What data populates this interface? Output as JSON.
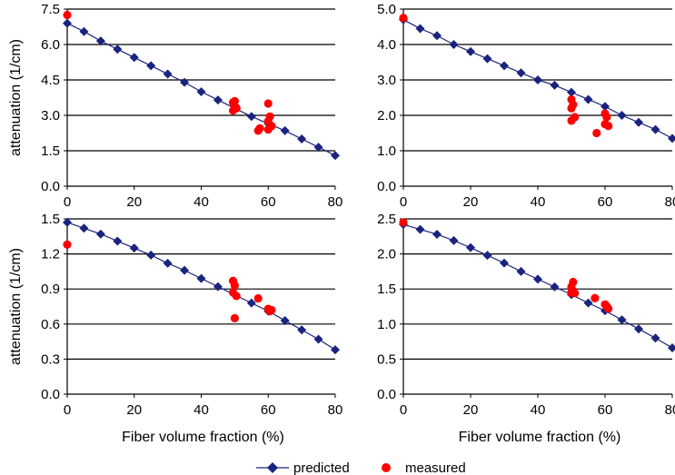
{
  "chart_data": [
    {
      "type": "line",
      "xlabel": "",
      "ylabel": "attenuation (1/cm)",
      "xlim": [
        0,
        80
      ],
      "ylim": [
        0,
        7.5
      ],
      "xticks": [
        "0",
        "20",
        "40",
        "60",
        "80"
      ],
      "yticks": [
        "0.0",
        "1.5",
        "3.0",
        "4.5",
        "6.0",
        "7.5"
      ],
      "grid": "horizontal",
      "series": [
        {
          "name": "predicted",
          "marker": "diamond",
          "color": "#1a237e",
          "x": [
            0,
            5,
            10,
            15,
            20,
            25,
            30,
            35,
            40,
            45,
            50,
            55,
            60,
            65,
            70,
            75,
            80
          ],
          "y": [
            6.9,
            6.55,
            6.15,
            5.8,
            5.45,
            5.1,
            4.75,
            4.4,
            4.0,
            3.65,
            3.3,
            2.95,
            2.65,
            2.35,
            2.0,
            1.65,
            1.3
          ]
        },
        {
          "name": "measured",
          "marker": "circle",
          "color": "#ff0000",
          "x": [
            0,
            49.5,
            50,
            50.5,
            49.5,
            50,
            57,
            57.5,
            60,
            60.5,
            60,
            61,
            60
          ],
          "y": [
            7.25,
            3.55,
            3.4,
            3.3,
            3.2,
            3.6,
            2.35,
            2.45,
            3.5,
            2.95,
            2.75,
            2.55,
            2.4
          ]
        }
      ]
    },
    {
      "type": "line",
      "xlabel": "",
      "ylabel": "",
      "xlim": [
        0,
        80
      ],
      "ylim": [
        0,
        5
      ],
      "xticks": [
        "0",
        "20",
        "40",
        "60",
        "80"
      ],
      "yticks": [
        "0.0",
        "1.0",
        "2.0",
        "3.0",
        "4.0",
        "5.0"
      ],
      "grid": "horizontal",
      "series": [
        {
          "name": "predicted",
          "marker": "diamond",
          "color": "#1a237e",
          "x": [
            0,
            5,
            10,
            15,
            20,
            25,
            30,
            35,
            40,
            45,
            50,
            55,
            60,
            65,
            70,
            75,
            80
          ],
          "y": [
            4.7,
            4.45,
            4.25,
            4.0,
            3.8,
            3.6,
            3.4,
            3.2,
            3.0,
            2.85,
            2.65,
            2.45,
            2.25,
            2.0,
            1.8,
            1.6,
            1.35
          ]
        },
        {
          "name": "measured",
          "marker": "circle",
          "color": "#ff0000",
          "x": [
            0,
            50,
            50.5,
            50,
            51,
            50,
            57.5,
            60,
            60.5,
            60,
            61
          ],
          "y": [
            4.75,
            2.45,
            2.3,
            2.2,
            1.95,
            1.85,
            1.5,
            2.05,
            1.95,
            1.75,
            1.7
          ]
        }
      ]
    },
    {
      "type": "line",
      "xlabel": "Fiber volume fraction (%)",
      "ylabel": "attenuation (1/cm)",
      "xlim": [
        0,
        80
      ],
      "ylim": [
        0,
        1.5
      ],
      "xticks": [
        "0",
        "20",
        "40",
        "60",
        "80"
      ],
      "yticks": [
        "0.0",
        "0.3",
        "0.6",
        "0.9",
        "1.2",
        "1.5"
      ],
      "grid": "horizontal",
      "series": [
        {
          "name": "predicted",
          "marker": "diamond",
          "color": "#1a237e",
          "x": [
            0,
            5,
            10,
            15,
            20,
            25,
            30,
            35,
            40,
            45,
            50,
            55,
            60,
            65,
            70,
            75,
            80
          ],
          "y": [
            1.47,
            1.42,
            1.37,
            1.31,
            1.25,
            1.19,
            1.12,
            1.06,
            0.99,
            0.92,
            0.85,
            0.78,
            0.71,
            0.63,
            0.55,
            0.47,
            0.38
          ]
        },
        {
          "name": "measured",
          "marker": "circle",
          "color": "#ff0000",
          "x": [
            0,
            49.5,
            50,
            49.5,
            50.5,
            50,
            57,
            60,
            60.5,
            61
          ],
          "y": [
            1.28,
            0.97,
            0.93,
            0.87,
            0.84,
            0.65,
            0.82,
            0.73,
            0.71,
            0.72
          ]
        }
      ]
    },
    {
      "type": "line",
      "xlabel": "Fiber volume fraction (%)",
      "ylabel": "",
      "xlim": [
        0,
        80
      ],
      "ylim": [
        0,
        2.5
      ],
      "xticks": [
        "0",
        "20",
        "40",
        "60",
        "80"
      ],
      "yticks": [
        "0.0",
        "0.5",
        "1.0",
        "1.5",
        "2.0",
        "2.5"
      ],
      "grid": "horizontal",
      "series": [
        {
          "name": "predicted",
          "marker": "diamond",
          "color": "#1a237e",
          "x": [
            0,
            5,
            10,
            15,
            20,
            25,
            30,
            35,
            40,
            45,
            50,
            55,
            60,
            65,
            70,
            75,
            80
          ],
          "y": [
            2.42,
            2.35,
            2.28,
            2.19,
            2.09,
            1.98,
            1.87,
            1.75,
            1.64,
            1.53,
            1.42,
            1.3,
            1.19,
            1.06,
            0.93,
            0.8,
            0.66
          ]
        },
        {
          "name": "measured",
          "marker": "circle",
          "color": "#ff0000",
          "x": [
            0,
            50.5,
            50,
            50.5,
            50,
            51,
            57,
            60,
            60.5,
            61
          ],
          "y": [
            2.45,
            1.6,
            1.53,
            1.47,
            1.45,
            1.44,
            1.37,
            1.28,
            1.25,
            1.22
          ]
        }
      ]
    }
  ],
  "legend": {
    "position": "bottom",
    "items": [
      {
        "label": "predicted",
        "marker": "diamond",
        "color": "#1a237e"
      },
      {
        "label": "measured",
        "marker": "circle",
        "color": "#ff0000"
      }
    ]
  }
}
